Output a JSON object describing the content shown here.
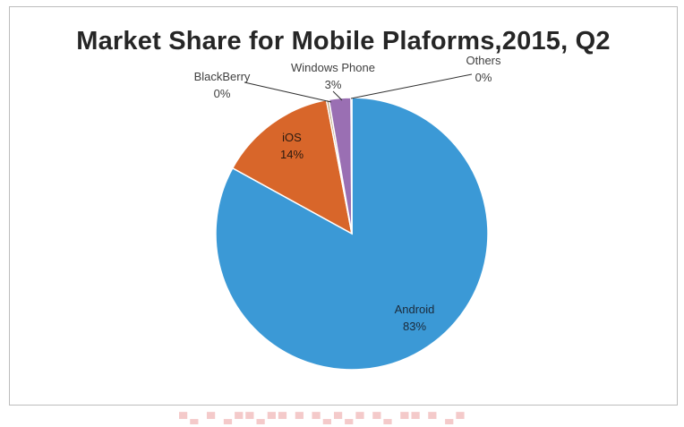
{
  "chart_data": {
    "type": "pie",
    "title": "Market Share for Mobile Plaforms,2015, Q2",
    "slices": [
      {
        "label": "Android",
        "value": 83,
        "value_label": "83%",
        "color": "#3b99d6"
      },
      {
        "label": "iOS",
        "value": 14,
        "value_label": "14%",
        "color": "#d8662a"
      },
      {
        "label": "BlackBerry",
        "value": 0.3,
        "value_label": "0%",
        "color": "#b8a07a"
      },
      {
        "label": "Windows Phone",
        "value": 2.6,
        "value_label": "3%",
        "color": "#9a6fb3"
      },
      {
        "label": "Others",
        "value": 0.1,
        "value_label": "0%",
        "color": "#7fb24a"
      }
    ],
    "start": "top, clockwise",
    "legend": "none",
    "grid": false
  }
}
